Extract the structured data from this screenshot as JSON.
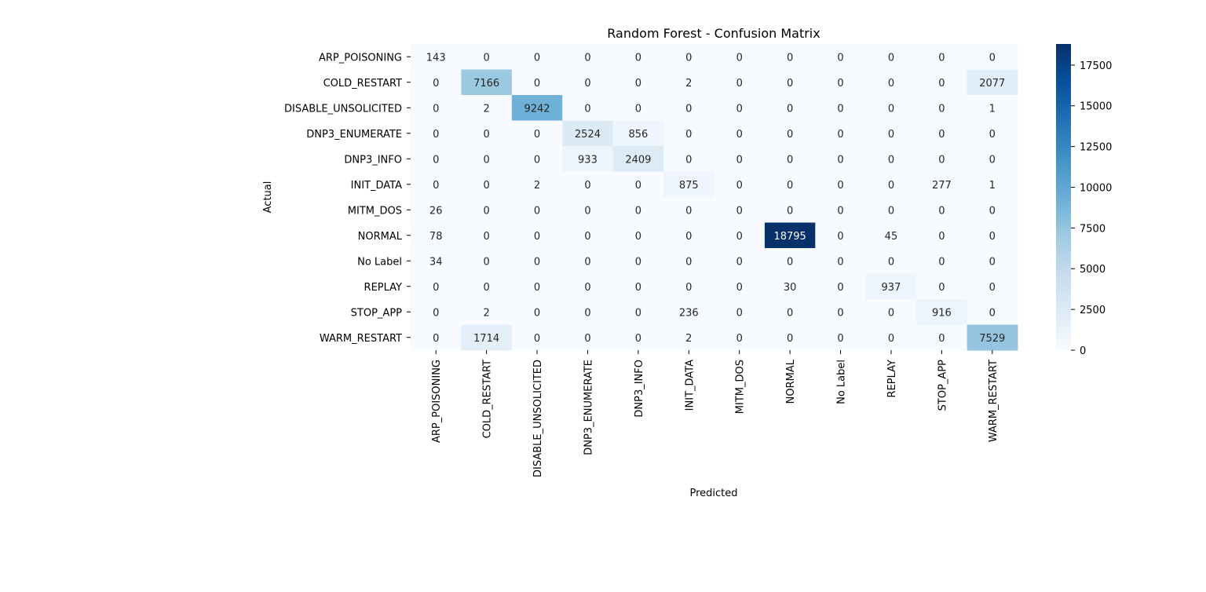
{
  "chart_data": {
    "type": "heatmap",
    "title": "Random Forest - Confusion Matrix",
    "xlabel": "Predicted",
    "ylabel": "Actual",
    "row_labels": [
      "ARP_POISONING",
      "COLD_RESTART",
      "DISABLE_UNSOLICITED",
      "DNP3_ENUMERATE",
      "DNP3_INFO",
      "INIT_DATA",
      "MITM_DOS",
      "NORMAL",
      "No Label",
      "REPLAY",
      "STOP_APP",
      "WARM_RESTART"
    ],
    "col_labels": [
      "ARP_POISONING",
      "COLD_RESTART",
      "DISABLE_UNSOLICITED",
      "DNP3_ENUMERATE",
      "DNP3_INFO",
      "INIT_DATA",
      "MITM_DOS",
      "NORMAL",
      "No Label",
      "REPLAY",
      "STOP_APP",
      "WARM_RESTART"
    ],
    "matrix": [
      [
        143,
        0,
        0,
        0,
        0,
        0,
        0,
        0,
        0,
        0,
        0,
        0
      ],
      [
        0,
        7166,
        0,
        0,
        0,
        2,
        0,
        0,
        0,
        0,
        0,
        2077
      ],
      [
        0,
        2,
        9242,
        0,
        0,
        0,
        0,
        0,
        0,
        0,
        0,
        1
      ],
      [
        0,
        0,
        0,
        2524,
        856,
        0,
        0,
        0,
        0,
        0,
        0,
        0
      ],
      [
        0,
        0,
        0,
        933,
        2409,
        0,
        0,
        0,
        0,
        0,
        0,
        0
      ],
      [
        0,
        0,
        2,
        0,
        0,
        875,
        0,
        0,
        0,
        0,
        277,
        1
      ],
      [
        26,
        0,
        0,
        0,
        0,
        0,
        0,
        0,
        0,
        0,
        0,
        0
      ],
      [
        78,
        0,
        0,
        0,
        0,
        0,
        0,
        18795,
        0,
        45,
        0,
        0
      ],
      [
        34,
        0,
        0,
        0,
        0,
        0,
        0,
        0,
        0,
        0,
        0,
        0
      ],
      [
        0,
        0,
        0,
        0,
        0,
        0,
        0,
        30,
        0,
        937,
        0,
        0
      ],
      [
        0,
        2,
        0,
        0,
        0,
        236,
        0,
        0,
        0,
        0,
        916,
        0
      ],
      [
        0,
        1714,
        0,
        0,
        0,
        2,
        0,
        0,
        0,
        0,
        0,
        7529
      ]
    ],
    "colormap": "Blues",
    "colorbar": {
      "ticks": [
        0,
        2500,
        5000,
        7500,
        10000,
        12500,
        15000,
        17500
      ],
      "tick_labels": [
        "0",
        "2500",
        "5000",
        "7500",
        "10000",
        "12500",
        "15000",
        "17500"
      ],
      "range": [
        0,
        18795
      ]
    },
    "grid": false
  }
}
